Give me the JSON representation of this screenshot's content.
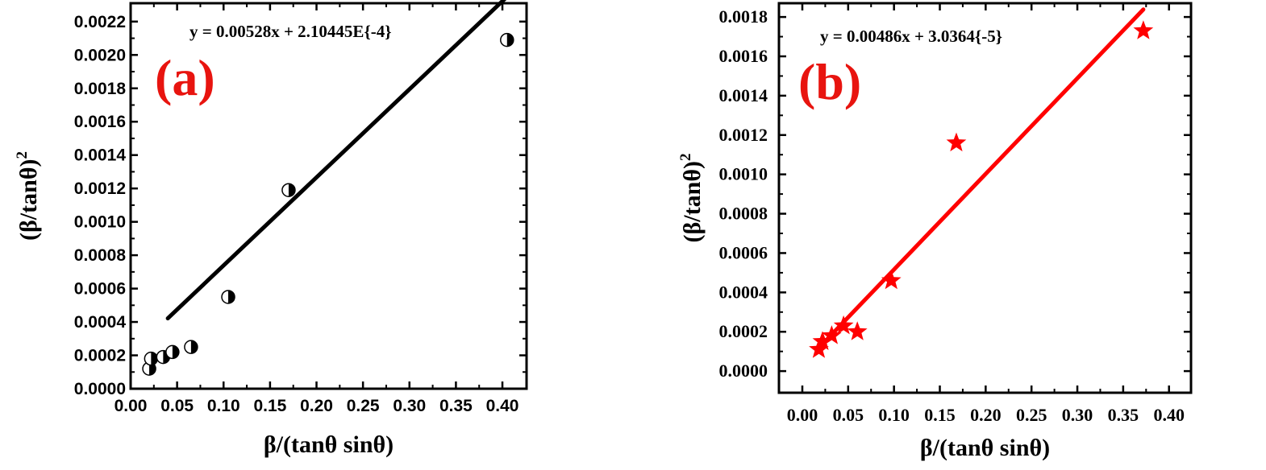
{
  "chart_data": [
    {
      "type": "scatter",
      "panel_label": "(a)",
      "equation": "y = 0.00528x + 2.10445E{-4}",
      "xlabel": "β/(tanθ sinθ)",
      "ylabel": "(β/tanθ)",
      "ylabel_sup": "2",
      "xlim": [
        0,
        0.426
      ],
      "ylim": [
        0,
        0.00231
      ],
      "xticks": [
        "0.00",
        "0.05",
        "0.10",
        "0.15",
        "0.20",
        "0.25",
        "0.30",
        "0.35",
        "0.40"
      ],
      "yticks": [
        "0.0000",
        "0.0002",
        "0.0004",
        "0.0006",
        "0.0008",
        "0.0010",
        "0.0012",
        "0.0014",
        "0.0016",
        "0.0018",
        "0.0020",
        "0.0022"
      ],
      "grid": false,
      "color": "#000000",
      "label_color": "#e8140f",
      "marker": "half-filled-circle",
      "points": [
        [
          0.02,
          0.00012
        ],
        [
          0.022,
          0.00018
        ],
        [
          0.035,
          0.00019
        ],
        [
          0.045,
          0.00022
        ],
        [
          0.065,
          0.00025
        ],
        [
          0.105,
          0.00055
        ],
        [
          0.17,
          0.00119
        ],
        [
          0.405,
          0.00209
        ]
      ],
      "fit": {
        "slope": 0.00528,
        "intercept": 0.000210445,
        "x_range": [
          0.04,
          0.405
        ]
      }
    },
    {
      "type": "scatter",
      "panel_label": "(b)",
      "equation": "y = 0.00486x + 3.0364{-5}",
      "xlabel": "β/(tanθ sinθ)",
      "ylabel": "(β/tanθ)",
      "ylabel_sup": "2",
      "xlim": [
        -0.0255,
        0.424
      ],
      "ylim": [
        -0.00011,
        0.00187
      ],
      "xticks": [
        "0.00",
        "0.05",
        "0.10",
        "0.15",
        "0.20",
        "0.25",
        "0.30",
        "0.35",
        "0.40"
      ],
      "yticks": [
        "0.0000",
        "0.0002",
        "0.0004",
        "0.0006",
        "0.0008",
        "0.0010",
        "0.0012",
        "0.0014",
        "0.0016",
        "0.0018"
      ],
      "grid": false,
      "color": "#ff0000",
      "label_color": "#e8140f",
      "marker": "star",
      "points": [
        [
          0.018,
          0.00011
        ],
        [
          0.022,
          0.00015
        ],
        [
          0.032,
          0.00018
        ],
        [
          0.045,
          0.00023
        ],
        [
          0.06,
          0.0002
        ],
        [
          0.097,
          0.00046
        ],
        [
          0.168,
          0.00116
        ],
        [
          0.372,
          0.00173
        ]
      ],
      "fit": {
        "slope": 0.00486,
        "intercept": 3.0364e-05,
        "x_range": [
          0.02,
          0.372
        ]
      }
    }
  ]
}
